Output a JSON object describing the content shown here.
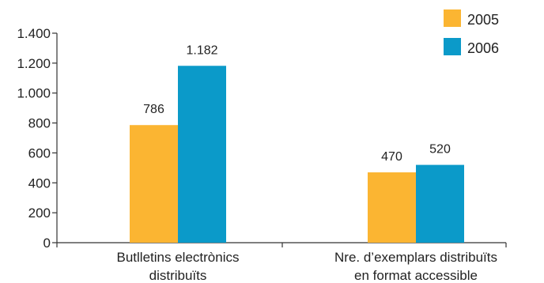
{
  "chart_data": {
    "type": "bar",
    "categories": [
      [
        "Butlletins electrònics",
        "distribuïts"
      ],
      [
        "Nre. d’exemplars distribuïts",
        "en format accessible"
      ]
    ],
    "series": [
      {
        "name": "2005",
        "values": [
          786,
          470
        ],
        "value_labels": [
          "786",
          "470"
        ],
        "color": "#FBB532"
      },
      {
        "name": "2006",
        "values": [
          1182,
          520
        ],
        "value_labels": [
          "1.182",
          "520"
        ],
        "color": "#0B9AC9"
      }
    ],
    "ylim": [
      0,
      1400
    ],
    "yticks": [
      0,
      200,
      400,
      600,
      800,
      1000,
      1200,
      1400
    ],
    "ytick_labels": [
      "0",
      "200",
      "400",
      "600",
      "800",
      "1.000",
      "1.200",
      "1.400"
    ],
    "title": "",
    "xlabel": "",
    "ylabel": "",
    "grid": false,
    "legend_position": "top-right"
  }
}
